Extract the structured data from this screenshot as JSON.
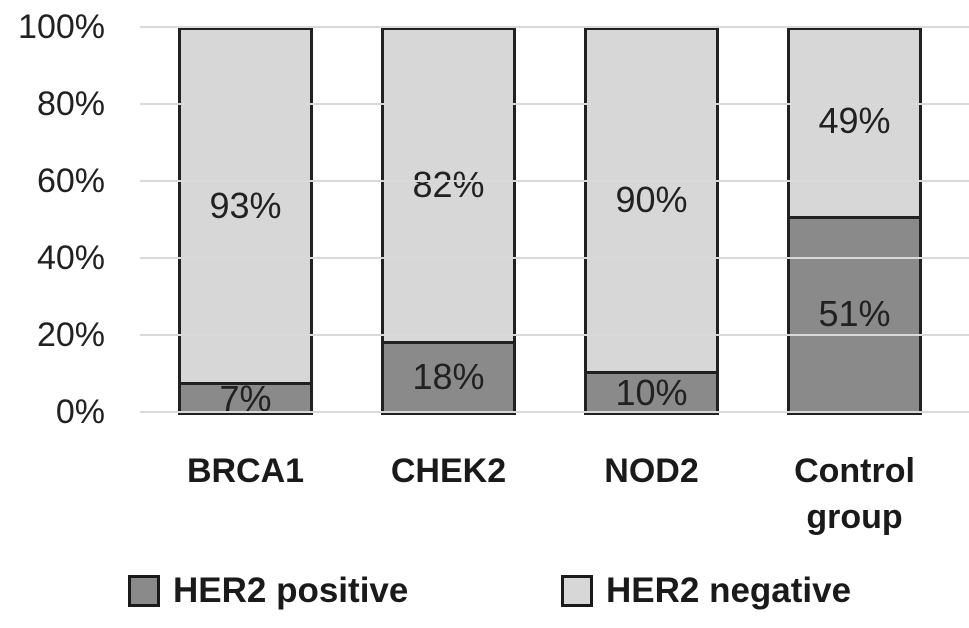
{
  "chart_data": {
    "type": "bar",
    "variant": "100%-stacked-column",
    "title": "",
    "xlabel": "",
    "ylabel": "",
    "categories": [
      "BRCA1",
      "CHEK2",
      "NOD2",
      "Control group"
    ],
    "series": [
      {
        "name": "HER2 positive",
        "color": "#8a8a8a",
        "values": [
          7,
          18,
          10,
          51
        ],
        "labels": [
          "7%",
          "18%",
          "10%",
          "51%"
        ]
      },
      {
        "name": "HER2 negative",
        "color": "#d7d7d7",
        "values": [
          93,
          82,
          90,
          49
        ],
        "labels": [
          "93%",
          "82%",
          "90%",
          "49%"
        ]
      }
    ],
    "y_axis": {
      "min": 0,
      "max": 100,
      "ticks": [
        {
          "value": 100,
          "label": "100%"
        },
        {
          "value": 80,
          "label": "80%"
        },
        {
          "value": 60,
          "label": "60%"
        },
        {
          "value": 40,
          "label": "40%"
        },
        {
          "value": 20,
          "label": "20%"
        },
        {
          "value": 0,
          "label": "0%"
        }
      ]
    },
    "grid": true,
    "legend": {
      "position": "bottom",
      "entries": [
        {
          "label": "HER2 positive",
          "color": "#8a8a8a"
        },
        {
          "label": "HER2 negative",
          "color": "#d7d7d7"
        }
      ]
    }
  },
  "colors": {
    "background": "#ffffff",
    "gridline": "#d9d9d9",
    "bar_border": "#212121",
    "text": "#212121",
    "her2_positive": "#8a8a8a",
    "her2_negative": "#d7d7d7"
  }
}
